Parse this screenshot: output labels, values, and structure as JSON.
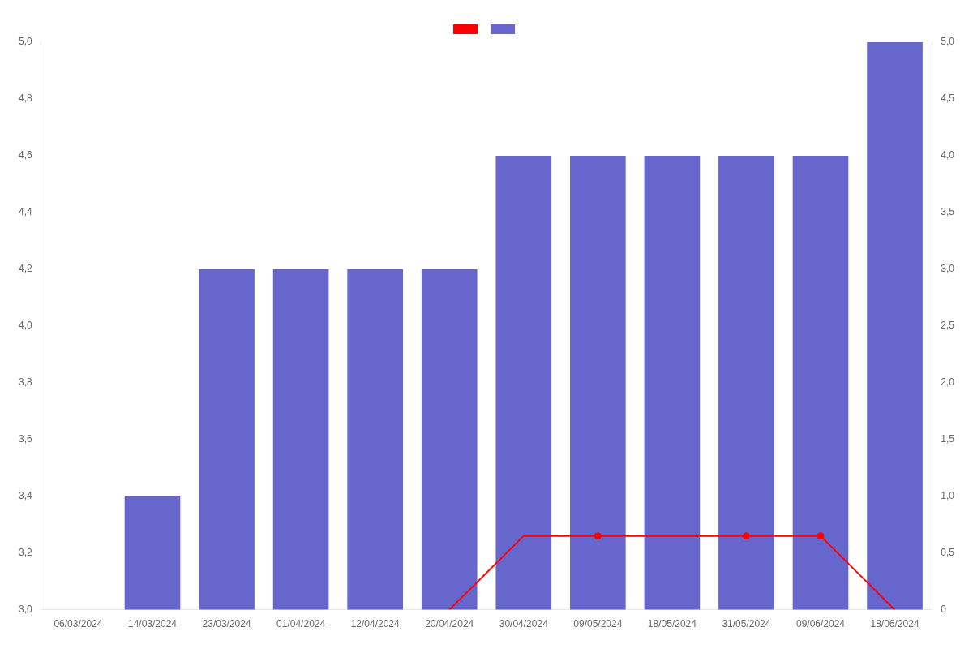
{
  "chart_data": {
    "type": "bar",
    "categories": [
      "06/03/2024",
      "14/03/2024",
      "23/03/2024",
      "01/04/2024",
      "12/04/2024",
      "20/04/2024",
      "30/04/2024",
      "09/05/2024",
      "18/05/2024",
      "31/05/2024",
      "09/06/2024",
      "18/06/2024"
    ],
    "series": [
      {
        "type": "line",
        "color": "#ff0000",
        "axis": "y2",
        "values": [
          null,
          null,
          null,
          null,
          null,
          0.0,
          0.65,
          0.65,
          0.65,
          0.65,
          0.65,
          0.0
        ]
      },
      {
        "type": "scatter",
        "color": "#ff0000",
        "axis": "y2",
        "marker": "o",
        "values": [
          null,
          null,
          null,
          null,
          null,
          null,
          null,
          0.65,
          null,
          0.65,
          0.65,
          null
        ]
      },
      {
        "type": "bar",
        "color": "#6666cc",
        "values": [
          null,
          3.4,
          4.2,
          4.2,
          4.2,
          4.2,
          4.6,
          4.6,
          4.6,
          4.6,
          4.6,
          5.0
        ]
      }
    ],
    "ylim": [
      3.0,
      5.0
    ],
    "yticks": [
      {
        "value": 3.0,
        "label": "3,0"
      },
      {
        "value": 3.2,
        "label": "3,2"
      },
      {
        "value": 3.4,
        "label": "3,4"
      },
      {
        "value": 3.6,
        "label": "3,6"
      },
      {
        "value": 3.8,
        "label": "3,8"
      },
      {
        "value": 4.0,
        "label": "4,0"
      },
      {
        "value": 4.2,
        "label": "4,2"
      },
      {
        "value": 4.4,
        "label": "4,4"
      },
      {
        "value": 4.6,
        "label": "4,6"
      },
      {
        "value": 4.8,
        "label": "4,8"
      },
      {
        "value": 5.0,
        "label": "5,0"
      }
    ],
    "y2lim": [
      0,
      5.0
    ],
    "y2ticks": [
      0,
      {
        "value": 0.5,
        "label": "0,5"
      },
      {
        "value": 1.0,
        "label": "1,0"
      },
      {
        "value": 1.5,
        "label": "1,5"
      },
      {
        "value": 2.0,
        "label": "2,0"
      },
      {
        "value": 2.5,
        "label": "2,5"
      },
      {
        "value": 3.0,
        "label": "3,0"
      },
      {
        "value": 3.5,
        "label": "3,5"
      },
      {
        "value": 4.0,
        "label": "4,0"
      },
      {
        "value": 4.5,
        "label": "4,5"
      },
      {
        "value": 5.0,
        "label": "5,0"
      }
    ],
    "grid": false,
    "legend": "top"
  }
}
